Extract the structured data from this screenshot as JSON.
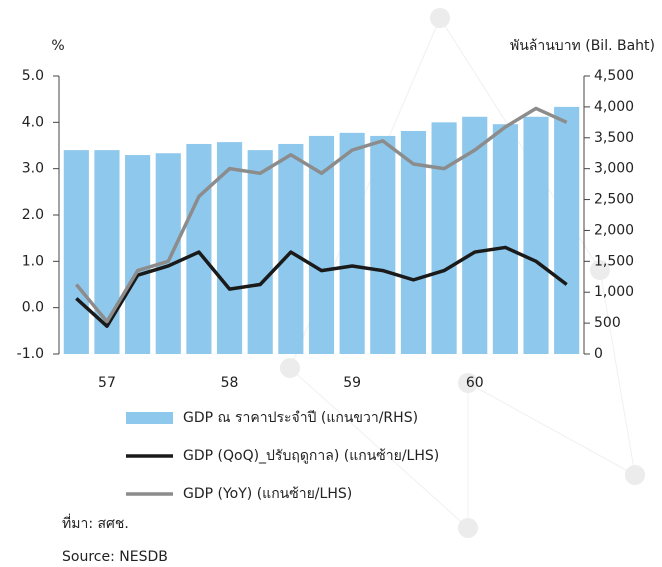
{
  "chart_data": {
    "type": "combo",
    "y_label": "%",
    "y2_label": "พันล้านบาท (Bil. Baht)",
    "categories": [
      null,
      "57",
      null,
      null,
      null,
      "58",
      null,
      null,
      null,
      "59",
      null,
      null,
      null,
      "60",
      null,
      null,
      null
    ],
    "series": [
      {
        "name": "GDP ณ ราคาประจำปี (แกนขวา/RHS)",
        "type": "bar",
        "axis": "y2",
        "color": "#8ec8ec",
        "values": [
          3300,
          3300,
          3220,
          3250,
          3400,
          3430,
          3300,
          3400,
          3530,
          3580,
          3530,
          3610,
          3750,
          3840,
          3720,
          3840,
          4000
        ]
      },
      {
        "name": "GDP (QoQ)_ปรับฤดูกาล) (แกนซ้าย/LHS)",
        "type": "line",
        "color": "#1a1a1a",
        "values": [
          0.2,
          -0.4,
          0.7,
          0.9,
          1.2,
          0.4,
          0.5,
          1.2,
          0.8,
          0.9,
          0.8,
          0.6,
          0.8,
          1.2,
          1.3,
          1.0,
          0.5
        ]
      },
      {
        "name": "GDP (YoY) (แกนซ้าย/LHS)",
        "type": "line",
        "color": "#8c8c8c",
        "values": [
          0.5,
          -0.3,
          0.8,
          1.0,
          2.4,
          3.0,
          2.9,
          3.3,
          2.9,
          3.4,
          3.6,
          3.1,
          3.0,
          3.4,
          3.9,
          4.3,
          4.0
        ]
      }
    ],
    "ylim": [
      -1,
      5
    ],
    "yticks": [
      {
        "value": -1,
        "label": "-1.0"
      },
      {
        "value": 0,
        "label": "0.0"
      },
      {
        "value": 1,
        "label": "1.0"
      },
      {
        "value": 2,
        "label": "2.0"
      },
      {
        "value": 3,
        "label": "3.0"
      },
      {
        "value": 4,
        "label": "4.0"
      },
      {
        "value": 5,
        "label": "5.0"
      }
    ],
    "y2lim": [
      0,
      4500
    ],
    "y2ticks": [
      0,
      500,
      {
        "value": 1000,
        "label": "1,000"
      },
      {
        "value": 1500,
        "label": "1,500"
      },
      {
        "value": 2000,
        "label": "2,000"
      },
      {
        "value": 2500,
        "label": "2,500"
      },
      {
        "value": 3000,
        "label": "3,000"
      },
      {
        "value": 3500,
        "label": "3,500"
      },
      {
        "value": 4000,
        "label": "4,000"
      },
      {
        "value": 4500,
        "label": "4,500"
      }
    ],
    "source_th": "ที่มา: สศช.",
    "source_en": "Source: NESDB"
  }
}
